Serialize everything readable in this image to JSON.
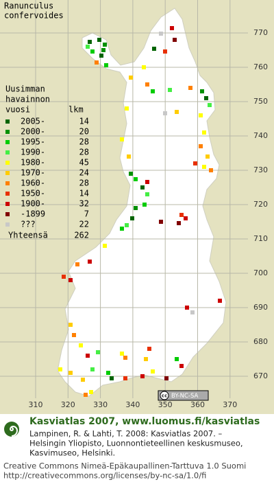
{
  "title": [
    "Ranunculus",
    "confervoides"
  ],
  "legend": {
    "title": [
      "Uusimman",
      "havainnon",
      "vuosi"
    ],
    "count_header": "lkm",
    "rows": [
      {
        "label": "2005-",
        "count": 14,
        "color": "#006400"
      },
      {
        "label": "2000-",
        "count": 20,
        "color": "#009000"
      },
      {
        "label": "1995-",
        "count": 28,
        "color": "#00cc00"
      },
      {
        "label": "1990-",
        "count": 28,
        "color": "#44ee44"
      },
      {
        "label": "1980-",
        "count": 45,
        "color": "#ffff00"
      },
      {
        "label": "1970-",
        "count": 24,
        "color": "#ffcc00"
      },
      {
        "label": "1960-",
        "count": 28,
        "color": "#ff8000"
      },
      {
        "label": "1950-",
        "count": 14,
        "color": "#e83000"
      },
      {
        "label": "1900-",
        "count": 32,
        "color": "#cc0000"
      },
      {
        "label": "-1899",
        "count": 7,
        "color": "#800000"
      },
      {
        "label": "???",
        "count": 22,
        "color": "#c8c8c8"
      }
    ],
    "total": {
      "label": "Yhteensä",
      "count": 262
    }
  },
  "map": {
    "yticks": [
      770,
      760,
      750,
      740,
      730,
      720,
      710,
      700,
      690,
      680,
      670
    ],
    "xticks": [
      310,
      320,
      330,
      340,
      350,
      360,
      370
    ]
  },
  "license_badge": {
    "icon": "cc",
    "text": "BY-NC-SA"
  },
  "footer": {
    "title": "Kasviatlas 2007, www.luomus.fi/kasviatlas",
    "citation": [
      "Lampinen, R. & Lahti, T. 2008: Kasviatlas 2007. –",
      "Helsingin Yliopisto, Luonnontieteellinen keskusmuseo,",
      "Kasvimuseo, Helsinki."
    ],
    "license": [
      "Creative Commons Nimeä-Epäkaupallinen-Tarttuva 1.0 Suomi",
      "http://creativecommons.org/licenses/by-nc-sa/1.0/fi"
    ]
  }
}
